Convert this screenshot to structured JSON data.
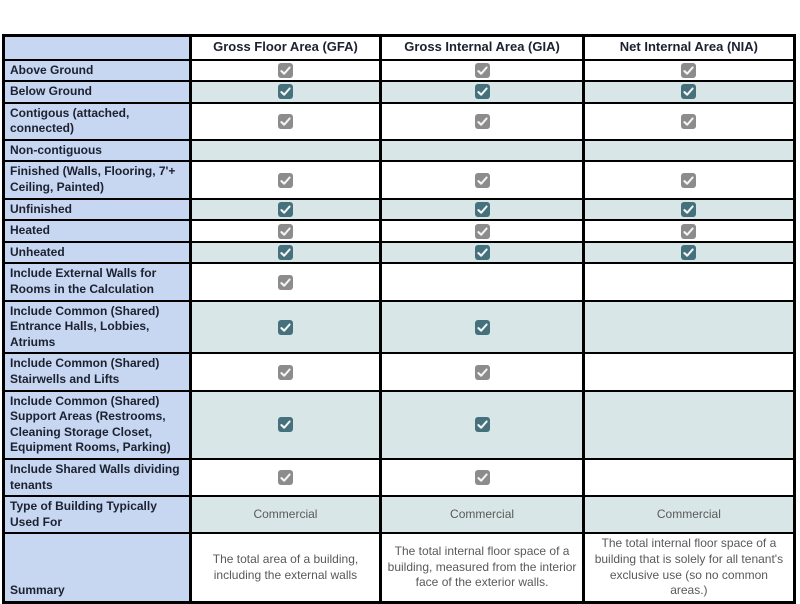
{
  "colors": {
    "label_bg": "#c7d6f1",
    "shade_bg": "#d9e6e8",
    "check_gray": "#8c8c8c",
    "check_teal": "#44717c",
    "header_text": "#1c2130",
    "data_text": "#595959",
    "border_color": "#000000",
    "page_bg": "#ffffff"
  },
  "table": {
    "corner_label": "",
    "columns": [
      "Gross Floor Area (GFA)",
      "Gross Internal Area (GIA)",
      "Net Internal Area (NIA)"
    ],
    "checkbox_checked_icon": "checkmark",
    "rows": [
      {
        "label": "Above Ground",
        "cells": [
          true,
          true,
          true
        ]
      },
      {
        "label": "Below Ground",
        "cells": [
          true,
          true,
          true
        ]
      },
      {
        "label": "Contigous (attached, connected)",
        "cells": [
          true,
          true,
          true
        ]
      },
      {
        "label": "Non-contiguous",
        "cells": [
          false,
          false,
          false
        ]
      },
      {
        "label": "Finished (Walls, Flooring, 7'+ Ceiling, Painted)",
        "cells": [
          true,
          true,
          true
        ]
      },
      {
        "label": "Unfinished",
        "cells": [
          true,
          true,
          true
        ]
      },
      {
        "label": "Heated",
        "cells": [
          true,
          true,
          true
        ]
      },
      {
        "label": "Unheated",
        "cells": [
          true,
          true,
          true
        ]
      },
      {
        "label": "Include External Walls for Rooms in the Calculation",
        "cells": [
          true,
          false,
          false
        ]
      },
      {
        "label": "Include Common (Shared) Entrance Halls, Lobbies, Atriums",
        "cells": [
          true,
          true,
          false
        ]
      },
      {
        "label": "Include Common (Shared) Stairwells and Lifts",
        "cells": [
          true,
          true,
          false
        ]
      },
      {
        "label": "Include Common (Shared) Support Areas (Restrooms, Cleaning Storage Closet, Equipment Rooms, Parking)",
        "cells": [
          true,
          true,
          false
        ]
      },
      {
        "label": "Include Shared Walls dividing tenants",
        "cells": [
          true,
          true,
          false
        ]
      },
      {
        "label": "Type of Building Typically Used For",
        "cells": [
          "Commercial",
          "Commercial",
          "Commercial"
        ]
      },
      {
        "label": "Summary",
        "cells": [
          "The total area of a building, including the external walls",
          "The total internal floor space of a building, measured from the interior face of the exterior walls.",
          "The total internal floor space of a building that is solely for all tenant's exclusive use (so no common areas.)"
        ]
      }
    ]
  }
}
